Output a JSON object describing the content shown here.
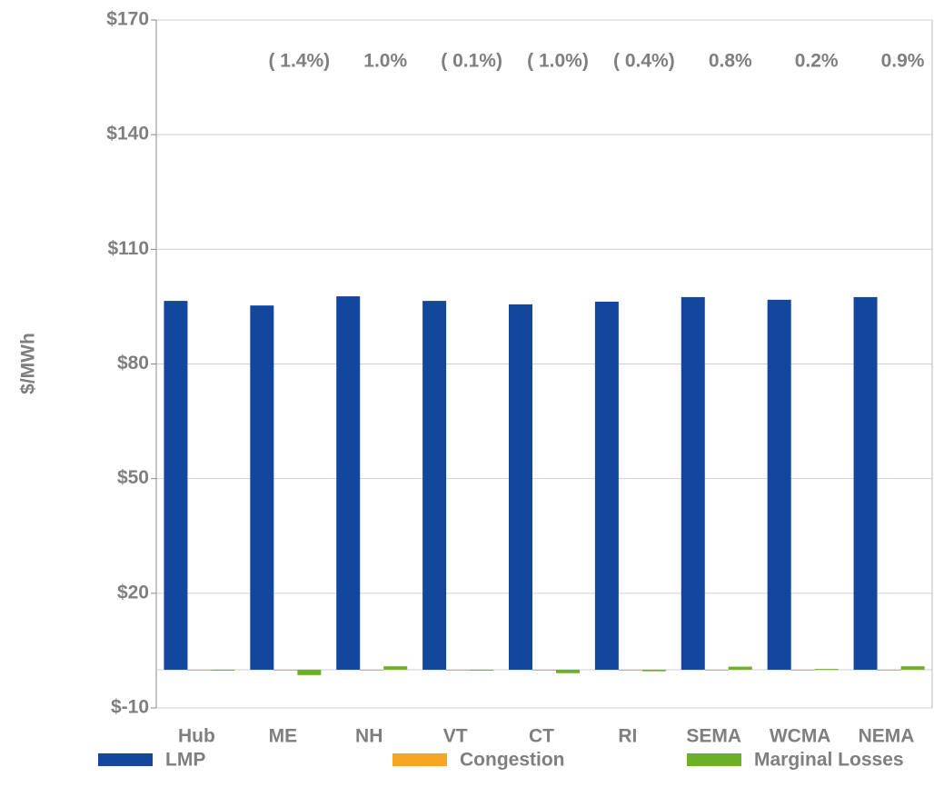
{
  "chart_data": {
    "type": "bar",
    "y_label": "$/MWh",
    "categories": [
      "Hub",
      "ME",
      "NH",
      "VT",
      "CT",
      "RI",
      "SEMA",
      "WCMA",
      "NEMA"
    ],
    "series": [
      {
        "name": "LMP",
        "color": "#13479e",
        "values": [
          96.5,
          95.3,
          97.7,
          96.5,
          95.6,
          96.3,
          97.5,
          96.8,
          97.5
        ]
      },
      {
        "name": "Congestion",
        "color": "#f6a623",
        "values": [
          0,
          0,
          0,
          0,
          0,
          0,
          0,
          0,
          0
        ]
      },
      {
        "name": "Marginal Losses",
        "color": "#6cb02a",
        "values": [
          -0.1,
          -1.4,
          0.9,
          -0.1,
          -0.9,
          -0.4,
          0.8,
          0.2,
          0.9
        ]
      }
    ],
    "annotations": [
      null,
      "( 1.4%)",
      "1.0%",
      "( 0.1%)",
      "( 1.0%)",
      "( 0.4%)",
      "0.8%",
      "0.2%",
      "0.9%"
    ],
    "ylim": [
      -10,
      170
    ],
    "yticks": [
      {
        "value": -10,
        "label": "$-10"
      },
      {
        "value": 20,
        "label": "$20"
      },
      {
        "value": 50,
        "label": "$50"
      },
      {
        "value": 80,
        "label": "$80"
      },
      {
        "value": 110,
        "label": "$110"
      },
      {
        "value": 140,
        "label": "$140"
      },
      {
        "value": 170,
        "label": "$170"
      }
    ],
    "grid": true
  }
}
